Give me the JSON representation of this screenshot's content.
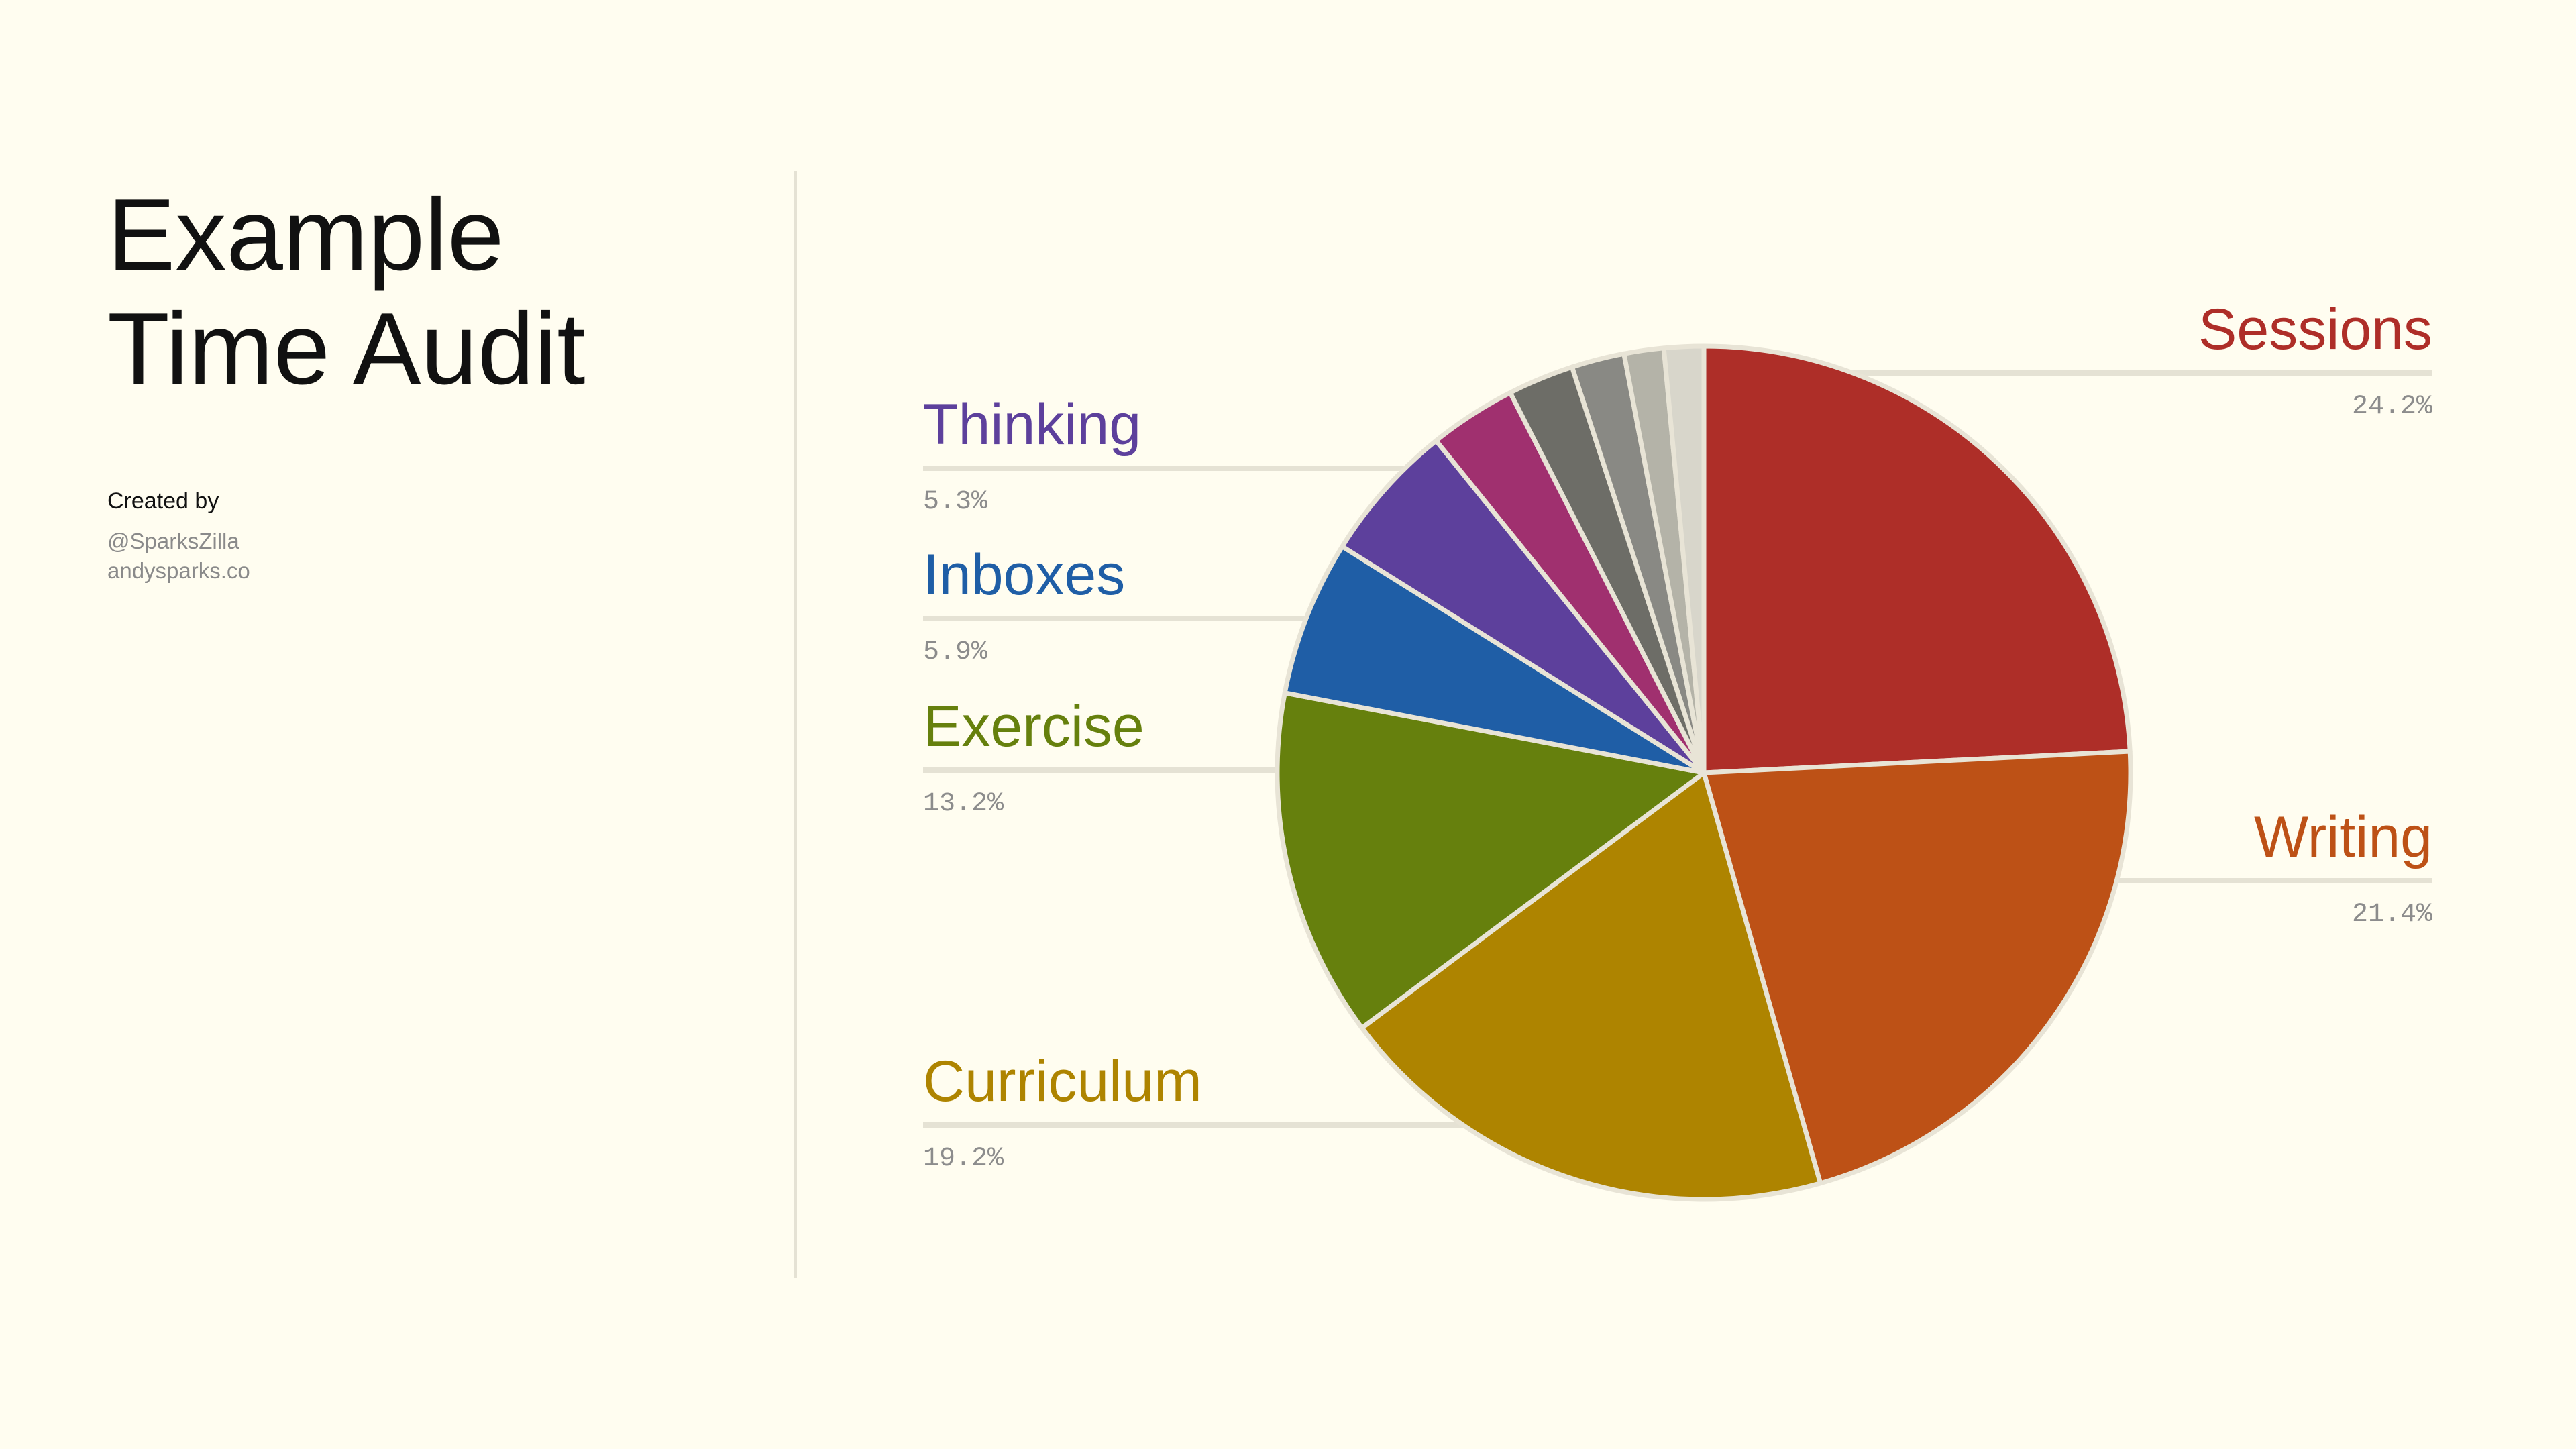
{
  "page": {
    "title_line1": "Example",
    "title_line2": "Time Audit",
    "credit_heading": "Created by",
    "credit_handle": "@SparksZilla",
    "credit_site": "andysparks.co"
  },
  "chart_data": {
    "type": "pie",
    "start_angle_deg": 0,
    "direction": "clockwise",
    "slice_stroke": "#e8e4d6",
    "leader_color": "#e5e2d4",
    "slices": [
      {
        "label": "Sessions",
        "value": 24.2,
        "percent_label": "24.2%",
        "color": "#ae2e28",
        "side": "right"
      },
      {
        "label": "Writing",
        "value": 21.4,
        "percent_label": "21.4%",
        "color": "#bd5116",
        "side": "right"
      },
      {
        "label": "Curriculum",
        "value": 19.2,
        "percent_label": "19.2%",
        "color": "#ae8400",
        "side": "left"
      },
      {
        "label": "Exercise",
        "value": 13.2,
        "percent_label": "13.2%",
        "color": "#66800d",
        "side": "left"
      },
      {
        "label": "Inboxes",
        "value": 5.9,
        "percent_label": "5.9%",
        "color": "#1f5ea6",
        "side": "left"
      },
      {
        "label": "Thinking",
        "value": 5.3,
        "percent_label": "5.3%",
        "color": "#5d409c",
        "side": "left"
      },
      {
        "label": "",
        "value": 3.3,
        "percent_label": "",
        "color": "#a0306f",
        "side": "none"
      },
      {
        "label": "",
        "value": 2.5,
        "percent_label": "",
        "color": "#6d6d67",
        "side": "none"
      },
      {
        "label": "",
        "value": 2.0,
        "percent_label": "",
        "color": "#898984",
        "side": "none"
      },
      {
        "label": "",
        "value": 1.5,
        "percent_label": "",
        "color": "#b4b3a8",
        "side": "none"
      },
      {
        "label": "",
        "value": 1.5,
        "percent_label": "",
        "color": "#d8d6cb",
        "side": "none"
      }
    ]
  }
}
